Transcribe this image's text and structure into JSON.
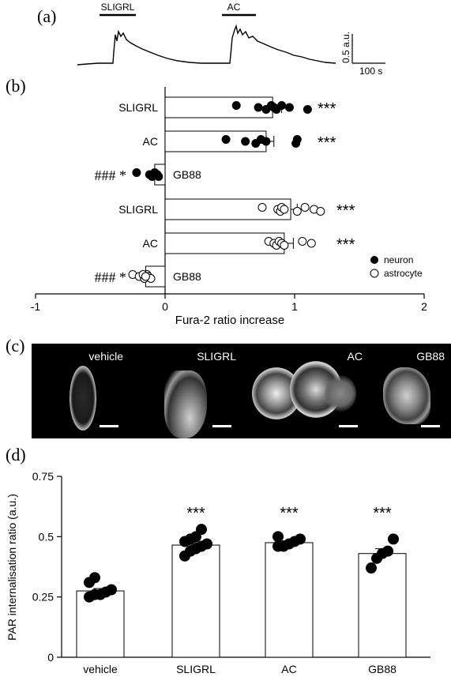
{
  "panel_labels": [
    "(a)",
    "(b)",
    "(c)",
    "(d)"
  ],
  "trace": {
    "markers": [
      "SLIGRL",
      "AC"
    ],
    "scale_y": "0.5 a.u.",
    "scale_x": "100 s"
  },
  "panel_b": {
    "xlabel": "Fura-2 ratio increase",
    "xlim": [
      -1,
      2
    ],
    "ticks": [
      "-1",
      "0",
      "1",
      "2"
    ],
    "legend": [
      "neuron",
      "astrocyte"
    ]
  },
  "panel_c": {
    "images": [
      "vehicle",
      "SLIGRL",
      "AC",
      "GB88"
    ]
  },
  "panel_d": {
    "ylabel": "PAR internalisation ratio (a.u.)",
    "yticks": [
      "0",
      "0.25",
      "0.5",
      "0.75"
    ]
  },
  "chart_data": [
    {
      "type": "bar",
      "orientation": "horizontal",
      "xlabel": "Fura-2 ratio increase",
      "xlim": [
        -1,
        2
      ],
      "legend": [
        "neuron",
        "astrocyte"
      ],
      "bars": [
        {
          "label": "SLIGRL",
          "group": "neuron",
          "value": 0.83,
          "error": 0.07,
          "points": [
            0.55,
            0.72,
            0.78,
            0.82,
            0.84,
            0.86,
            0.9,
            0.96,
            1.1
          ],
          "annotation": "***",
          "annotation_left": ""
        },
        {
          "label": "AC",
          "group": "neuron",
          "value": 0.78,
          "error": 0.06,
          "points": [
            0.47,
            0.62,
            0.7,
            0.74,
            0.78,
            1.01,
            1.02
          ],
          "annotation": "***",
          "annotation_left": ""
        },
        {
          "label": "GB88",
          "group": "neuron",
          "value": -0.08,
          "error": 0.02,
          "points": [
            -0.22,
            -0.12,
            -0.1,
            -0.08,
            -0.06,
            -0.05
          ],
          "annotation": "",
          "annotation_left": "### *"
        },
        {
          "label": "SLIGRL",
          "group": "astrocyte",
          "value": 0.97,
          "error": 0.05,
          "points": [
            0.75,
            0.87,
            0.89,
            0.9,
            0.92,
            1.02,
            1.08,
            1.15,
            1.2
          ],
          "annotation": "***",
          "annotation_left": ""
        },
        {
          "label": "AC",
          "group": "astrocyte",
          "value": 0.92,
          "error": 0.07,
          "points": [
            0.8,
            0.84,
            0.86,
            0.88,
            0.9,
            0.92,
            1.06,
            1.13
          ],
          "annotation": "***",
          "annotation_left": ""
        },
        {
          "label": "GB88",
          "group": "astrocyte",
          "value": -0.15,
          "error": 0.03,
          "points": [
            -0.25,
            -0.2,
            -0.16,
            -0.14,
            -0.13,
            -0.11,
            -0.17,
            -0.15
          ],
          "annotation": "",
          "annotation_left": "### *"
        }
      ]
    },
    {
      "type": "bar",
      "ylabel": "PAR internalisation ratio (a.u.)",
      "ylim": [
        0,
        0.75
      ],
      "categories": [
        "vehicle",
        "SLIGRL",
        "AC",
        "GB88"
      ],
      "values": [
        0.275,
        0.465,
        0.475,
        0.43
      ],
      "errors": [
        0.01,
        0.01,
        0.008,
        0.02
      ],
      "points": [
        [
          0.25,
          0.26,
          0.26,
          0.27,
          0.28,
          0.31,
          0.33
        ],
        [
          0.42,
          0.44,
          0.45,
          0.46,
          0.47,
          0.48,
          0.49,
          0.5,
          0.53
        ],
        [
          0.46,
          0.46,
          0.47,
          0.48,
          0.49,
          0.5
        ],
        [
          0.37,
          0.41,
          0.43,
          0.44,
          0.49
        ]
      ],
      "annotations": [
        "",
        "***",
        "***",
        "***"
      ]
    }
  ]
}
